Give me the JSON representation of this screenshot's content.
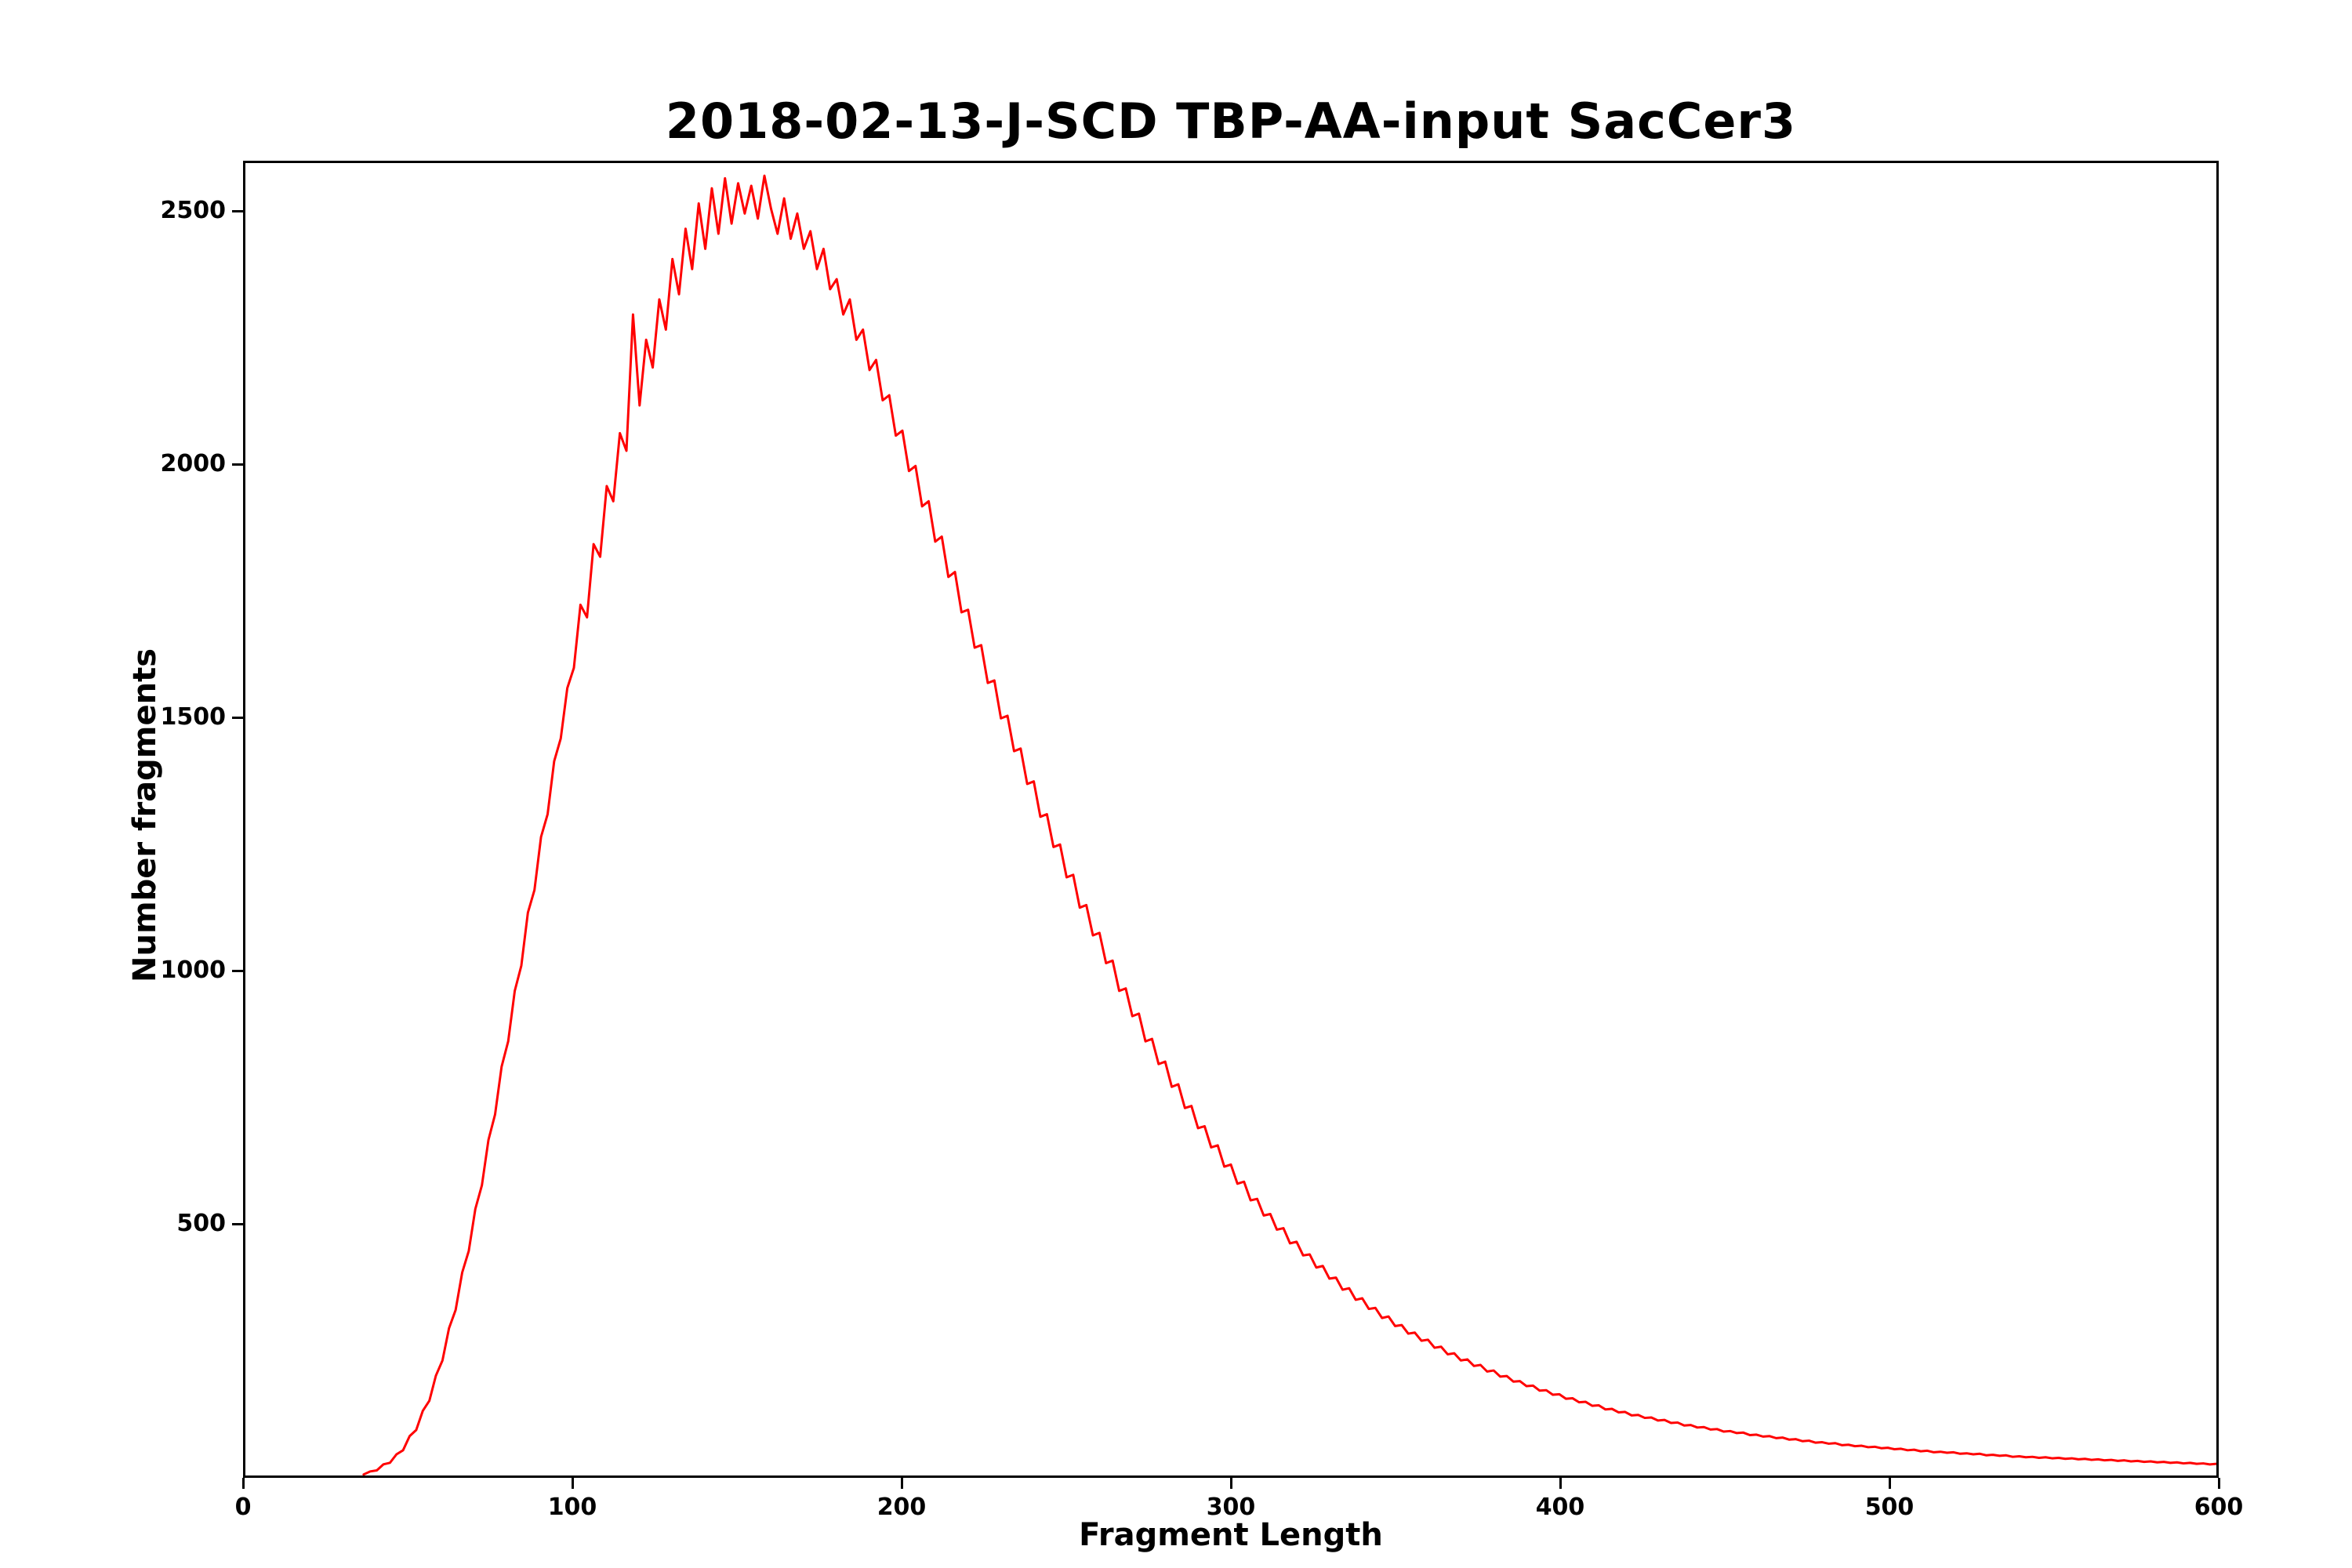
{
  "chart_data": {
    "type": "line",
    "title": "2018-02-13-J-SCD TBP-AA-input SacCer3",
    "xlabel": "Fragment Length",
    "ylabel": "Number fragments",
    "xlim": [
      0,
      600
    ],
    "ylim": [
      0,
      2600
    ],
    "x_ticks": [
      0,
      100,
      200,
      300,
      400,
      500,
      600
    ],
    "y_ticks": [
      500,
      1000,
      1500,
      2000,
      2500
    ],
    "grid": false,
    "legend": "none",
    "line_color": "#ff0000",
    "x_start": 36,
    "x_step": 2,
    "values": [
      2,
      8,
      10,
      22,
      25,
      42,
      50,
      78,
      90,
      128,
      148,
      198,
      228,
      292,
      328,
      402,
      445,
      528,
      575,
      665,
      715,
      810,
      860,
      960,
      1010,
      1115,
      1160,
      1265,
      1310,
      1415,
      1460,
      1560,
      1600,
      1725,
      1700,
      1845,
      1820,
      1960,
      1930,
      2065,
      2030,
      2300,
      2120,
      2250,
      2195,
      2330,
      2270,
      2410,
      2340,
      2470,
      2390,
      2520,
      2430,
      2550,
      2460,
      2570,
      2480,
      2560,
      2500,
      2555,
      2490,
      2575,
      2510,
      2460,
      2530,
      2450,
      2500,
      2430,
      2465,
      2390,
      2430,
      2350,
      2370,
      2300,
      2330,
      2250,
      2270,
      2190,
      2210,
      2130,
      2140,
      2060,
      2070,
      1990,
      2000,
      1920,
      1930,
      1850,
      1860,
      1780,
      1790,
      1710,
      1715,
      1640,
      1645,
      1570,
      1575,
      1500,
      1505,
      1435,
      1440,
      1370,
      1375,
      1305,
      1310,
      1245,
      1250,
      1185,
      1190,
      1125,
      1130,
      1070,
      1075,
      1015,
      1020,
      960,
      965,
      910,
      915,
      860,
      865,
      815,
      820,
      770,
      775,
      728,
      732,
      688,
      692,
      650,
      654,
      612,
      616,
      578,
      582,
      545,
      548,
      515,
      518,
      487,
      490,
      460,
      463,
      436,
      438,
      412,
      415,
      390,
      392,
      368,
      371,
      348,
      351,
      330,
      332,
      312,
      315,
      296,
      298,
      281,
      283,
      267,
      269,
      253,
      255,
      240,
      242,
      228,
      230,
      217,
      219,
      206,
      208,
      196,
      197,
      186,
      187,
      177,
      178,
      168,
      169,
      160,
      161,
      152,
      153,
      145,
      146,
      138,
      139,
      131,
      132,
      125,
      126,
      119,
      120,
      114,
      115,
      109,
      110,
      104,
      105,
      99,
      100,
      95,
      96,
      91,
      92,
      87,
      88,
      84,
      85,
      80,
      81,
      77,
      78,
      74,
      75,
      71,
      72,
      68,
      69,
      65,
      66,
      63,
      64,
      60,
      61,
      58,
      59,
      56,
      57,
      54,
      55,
      52,
      53,
      50,
      51,
      48,
      49,
      46,
      47,
      45,
      46,
      43,
      44,
      42,
      43,
      40,
      41,
      39,
      40,
      37,
      38,
      36,
      37,
      35,
      36,
      34,
      35,
      33,
      34,
      32,
      33,
      31,
      32,
      30,
      31,
      29,
      30,
      28,
      29,
      27,
      28,
      26,
      27,
      25,
      26,
      24,
      25,
      23,
      24,
      22,
      23
    ]
  }
}
